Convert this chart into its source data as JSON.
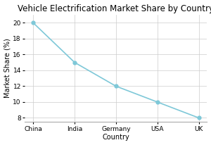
{
  "title": "Vehicle Electrification Market Share by Country",
  "xlabel": "Country",
  "ylabel": "Market Share (%)",
  "categories": [
    "China",
    "India",
    "Germany",
    "USA",
    "UK"
  ],
  "values": [
    20,
    15,
    12,
    10,
    8
  ],
  "line_color": "#7ec8d8",
  "marker_color": "#7ec8d8",
  "marker_style": "o",
  "marker_size": 3.5,
  "line_width": 1.2,
  "ylim": [
    7.5,
    21
  ],
  "yticks": [
    8,
    10,
    12,
    14,
    16,
    18,
    20
  ],
  "background_color": "#ffffff",
  "grid_color": "#cccccc",
  "title_fontsize": 8.5,
  "axis_label_fontsize": 7,
  "tick_fontsize": 6.5
}
